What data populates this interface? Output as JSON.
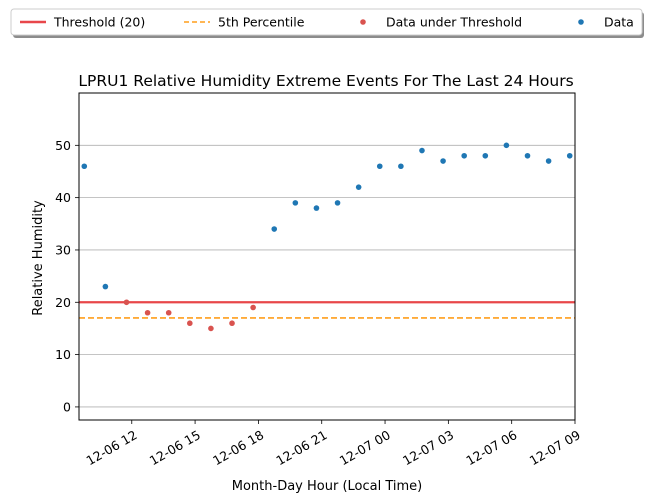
{
  "chart_data": {
    "type": "scatter",
    "title": "LPRU1 Relative Humidity Extreme Events For The Last 24 Hours",
    "xlabel": "Month-Day Hour (Local Time)",
    "ylabel": "Relative Humidity",
    "ylim": [
      -2.5,
      60
    ],
    "yticks": [
      0,
      10,
      20,
      30,
      40,
      50
    ],
    "xlim": [
      "12-06 09:30",
      "12-07 09:00"
    ],
    "xticks": [
      {
        "t": "12-06 12:00",
        "label": "12-06 12"
      },
      {
        "t": "12-06 15:00",
        "label": "12-06 15"
      },
      {
        "t": "12-06 18:00",
        "label": "12-06 18"
      },
      {
        "t": "12-06 21:00",
        "label": "12-06 21"
      },
      {
        "t": "12-07 00:00",
        "label": "12-07 00"
      },
      {
        "t": "12-07 03:00",
        "label": "12-07 03"
      },
      {
        "t": "12-07 06:00",
        "label": "12-07 06"
      },
      {
        "t": "12-07 09:00",
        "label": "12-07 09"
      }
    ],
    "grid": "horizontal",
    "legend_position": "top, outside the plot area",
    "legend": [
      {
        "label": "Threshold (20)",
        "kind": "solid-line",
        "color": "#e8474a"
      },
      {
        "label": "5th Percentile",
        "kind": "dashed-line",
        "color": "#ff9e1b"
      },
      {
        "label": "Data under Threshold",
        "kind": "dot",
        "color": "#d9534f"
      },
      {
        "label": "Data",
        "kind": "dot",
        "color": "#1f77b4"
      }
    ],
    "threshold": 20,
    "percentile_5": 17,
    "series": [
      {
        "name": "Data",
        "color": "#1f77b4",
        "points": [
          {
            "x": "12-06 09:45",
            "y": 46
          },
          {
            "x": "12-06 10:45",
            "y": 23
          },
          {
            "x": "12-06 18:45",
            "y": 34
          },
          {
            "x": "12-06 19:45",
            "y": 39
          },
          {
            "x": "12-06 20:45",
            "y": 38
          },
          {
            "x": "12-06 21:45",
            "y": 39
          },
          {
            "x": "12-06 22:45",
            "y": 42
          },
          {
            "x": "12-06 23:45",
            "y": 46
          },
          {
            "x": "12-07 00:45",
            "y": 46
          },
          {
            "x": "12-07 01:45",
            "y": 49
          },
          {
            "x": "12-07 02:45",
            "y": 47
          },
          {
            "x": "12-07 03:45",
            "y": 48
          },
          {
            "x": "12-07 04:45",
            "y": 48
          },
          {
            "x": "12-07 05:45",
            "y": 50
          },
          {
            "x": "12-07 06:45",
            "y": 48
          },
          {
            "x": "12-07 07:45",
            "y": 47
          },
          {
            "x": "12-07 08:45",
            "y": 48
          }
        ]
      },
      {
        "name": "Data under Threshold",
        "color": "#d9534f",
        "points": [
          {
            "x": "12-06 11:45",
            "y": 20
          },
          {
            "x": "12-06 12:45",
            "y": 18
          },
          {
            "x": "12-06 13:45",
            "y": 18
          },
          {
            "x": "12-06 14:45",
            "y": 16
          },
          {
            "x": "12-06 15:45",
            "y": 15
          },
          {
            "x": "12-06 16:45",
            "y": 16
          },
          {
            "x": "12-06 17:45",
            "y": 19
          }
        ]
      }
    ]
  }
}
